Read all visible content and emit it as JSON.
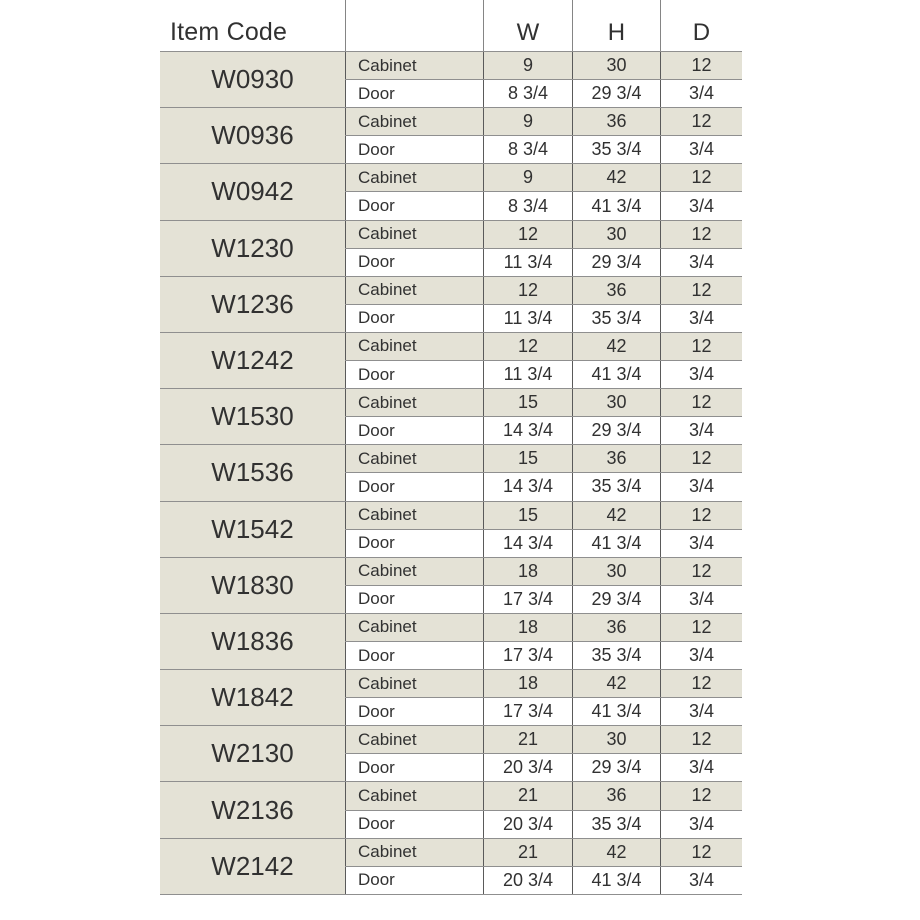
{
  "page": {
    "background": "#ffffff"
  },
  "table": {
    "header": {
      "item_code": "Item Code",
      "type": "",
      "w": "W",
      "h": "H",
      "d": "D"
    },
    "row_labels": {
      "cabinet": "Cabinet",
      "door": "Door"
    },
    "colors": {
      "cabinet_row_bg": "#e4e2d6",
      "door_row_bg": "#ffffff",
      "horizontal_line": "#8f8f8f",
      "vertical_line": "#5a5a5a",
      "text": "#313131"
    },
    "items": [
      {
        "code": "W0930",
        "cabinet": {
          "w": "9",
          "h": "30",
          "d": "12"
        },
        "door": {
          "w": "8 3/4",
          "h": "29 3/4",
          "d": "3/4"
        }
      },
      {
        "code": "W0936",
        "cabinet": {
          "w": "9",
          "h": "36",
          "d": "12"
        },
        "door": {
          "w": "8 3/4",
          "h": "35 3/4",
          "d": "3/4"
        }
      },
      {
        "code": "W0942",
        "cabinet": {
          "w": "9",
          "h": "42",
          "d": "12"
        },
        "door": {
          "w": "8 3/4",
          "h": "41 3/4",
          "d": "3/4"
        }
      },
      {
        "code": "W1230",
        "cabinet": {
          "w": "12",
          "h": "30",
          "d": "12"
        },
        "door": {
          "w": "11 3/4",
          "h": "29 3/4",
          "d": "3/4"
        }
      },
      {
        "code": "W1236",
        "cabinet": {
          "w": "12",
          "h": "36",
          "d": "12"
        },
        "door": {
          "w": "11 3/4",
          "h": "35 3/4",
          "d": "3/4"
        }
      },
      {
        "code": "W1242",
        "cabinet": {
          "w": "12",
          "h": "42",
          "d": "12"
        },
        "door": {
          "w": "11 3/4",
          "h": "41 3/4",
          "d": "3/4"
        }
      },
      {
        "code": "W1530",
        "cabinet": {
          "w": "15",
          "h": "30",
          "d": "12"
        },
        "door": {
          "w": "14 3/4",
          "h": "29 3/4",
          "d": "3/4"
        }
      },
      {
        "code": "W1536",
        "cabinet": {
          "w": "15",
          "h": "36",
          "d": "12"
        },
        "door": {
          "w": "14 3/4",
          "h": "35 3/4",
          "d": "3/4"
        }
      },
      {
        "code": "W1542",
        "cabinet": {
          "w": "15",
          "h": "42",
          "d": "12"
        },
        "door": {
          "w": "14 3/4",
          "h": "41 3/4",
          "d": "3/4"
        }
      },
      {
        "code": "W1830",
        "cabinet": {
          "w": "18",
          "h": "30",
          "d": "12"
        },
        "door": {
          "w": "17 3/4",
          "h": "29 3/4",
          "d": "3/4"
        }
      },
      {
        "code": "W1836",
        "cabinet": {
          "w": "18",
          "h": "36",
          "d": "12"
        },
        "door": {
          "w": "17 3/4",
          "h": "35 3/4",
          "d": "3/4"
        }
      },
      {
        "code": "W1842",
        "cabinet": {
          "w": "18",
          "h": "42",
          "d": "12"
        },
        "door": {
          "w": "17 3/4",
          "h": "41 3/4",
          "d": "3/4"
        }
      },
      {
        "code": "W2130",
        "cabinet": {
          "w": "21",
          "h": "30",
          "d": "12"
        },
        "door": {
          "w": "20 3/4",
          "h": "29 3/4",
          "d": "3/4"
        }
      },
      {
        "code": "W2136",
        "cabinet": {
          "w": "21",
          "h": "36",
          "d": "12"
        },
        "door": {
          "w": "20 3/4",
          "h": "35 3/4",
          "d": "3/4"
        }
      },
      {
        "code": "W2142",
        "cabinet": {
          "w": "21",
          "h": "42",
          "d": "12"
        },
        "door": {
          "w": "20 3/4",
          "h": "41 3/4",
          "d": "3/4"
        }
      }
    ]
  }
}
